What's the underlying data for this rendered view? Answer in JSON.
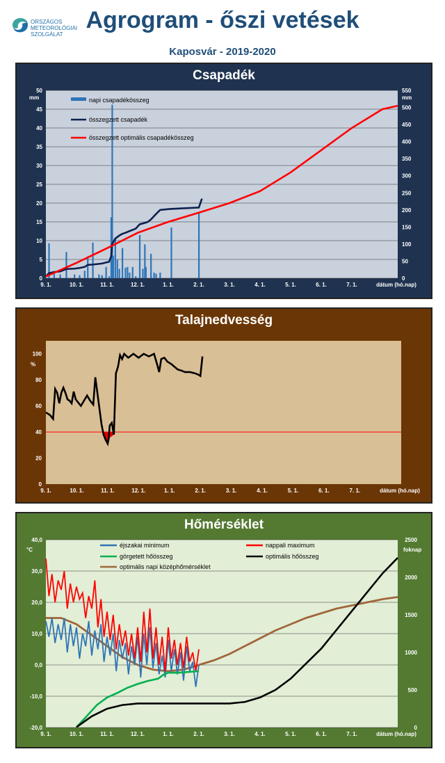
{
  "header": {
    "org_line1": "ORSZÁGOS",
    "org_line2": "METEOROLÓGIAI",
    "org_line3": "SZOLGÁLAT",
    "title": "Agrogram - őszi vetések",
    "subtitle": "Kaposvár  - 2019-2020"
  },
  "colors": {
    "napi": "#2e75b6",
    "osszegzett": "#0d1f4f",
    "optimalis": "#ff0000",
    "moisture": "#000000",
    "moisture_fill": "#e00000",
    "threshold": "#ff0000",
    "ejszakai": "#2e75b6",
    "nappali": "#ff0000",
    "gorgetett": "#00b050",
    "opt_hoosszeg": "#000000",
    "opt_kozep": "#a0663a"
  },
  "x_ticks": [
    "9. 1.",
    "10. 1.",
    "11. 1.",
    "12. 1.",
    "1. 1.",
    "2. 1.",
    "3. 1.",
    "4. 1.",
    "5. 1.",
    "6. 1.",
    "7. 1.",
    "dátum (hó.nap)"
  ],
  "chart_data": [
    {
      "type": "bar",
      "title": "Csapadék",
      "ylabel": "mm",
      "y2label": "mm",
      "ylim": [
        0,
        50
      ],
      "y2lim": [
        0,
        550
      ],
      "yticks": [
        0,
        5,
        10,
        15,
        20,
        25,
        30,
        35,
        40,
        45,
        50
      ],
      "y2ticks": [
        0,
        50,
        100,
        150,
        200,
        250,
        300,
        350,
        400,
        450,
        500,
        550
      ],
      "xlabel": "dátum (hó.nap)",
      "legend": [
        "napi csapadékösszeg",
        "összegzett csapadék",
        "összegzett optimális csapadékösszeg"
      ],
      "legend_position": "top-left",
      "grid": true,
      "series": [
        {
          "name": "napi csapadékösszeg",
          "axis": "left",
          "kind": "bar",
          "x": [
            3,
            8,
            14,
            20,
            28,
            33,
            38,
            41,
            46,
            52,
            55,
            59,
            62,
            64,
            65,
            66,
            68,
            70,
            72,
            75,
            78,
            80,
            82,
            85,
            88,
            92,
            95,
            97,
            98,
            103,
            106,
            108,
            112,
            123,
            150
          ],
          "values": [
            9.3,
            1.5,
            1,
            7,
            1,
            0.8,
            2,
            5.8,
            9.5,
            1,
            0.8,
            3,
            0.5,
            16.2,
            46.2,
            6,
            10.5,
            5,
            2.5,
            8,
            2.8,
            3,
            1.5,
            3,
            0.5,
            11.5,
            2.5,
            9,
            3,
            6.5,
            1.5,
            1.2,
            1.5,
            13.5,
            17.2
          ]
        },
        {
          "name": "összegzett csapadék",
          "axis": "right",
          "kind": "line",
          "x": [
            0,
            3,
            8,
            14,
            20,
            28,
            33,
            38,
            41,
            46,
            52,
            55,
            59,
            62,
            64,
            65,
            68,
            72,
            75,
            78,
            82,
            88,
            92,
            97,
            100,
            103,
            108,
            112,
            119,
            123,
            150,
            153
          ],
          "values": [
            5,
            15,
            18,
            20,
            27,
            28,
            30,
            33,
            39,
            40,
            42,
            43,
            46,
            48,
            64,
            100,
            116,
            125,
            130,
            133,
            138,
            145,
            158,
            162,
            165,
            172,
            188,
            200,
            202,
            203,
            207,
            233
          ]
        },
        {
          "name": "összegzett optimális csapadékösszeg",
          "axis": "right",
          "kind": "line",
          "x": [
            0,
            30,
            60,
            90,
            120,
            150,
            180,
            210,
            240,
            270,
            300,
            330,
            345
          ],
          "values": [
            5,
            45,
            88,
            133,
            165,
            192,
            220,
            255,
            310,
            375,
            440,
            495,
            505
          ]
        }
      ]
    },
    {
      "type": "line",
      "title": "Talajnedvesség",
      "ylabel": "%",
      "ylim": [
        0,
        110
      ],
      "yticks": [
        0,
        20,
        40,
        60,
        80,
        100
      ],
      "xlabel": "dátum (hó.nap)",
      "grid": false,
      "threshold": 40,
      "series": [
        {
          "name": "talajnedvesség",
          "x": [
            0,
            4,
            7,
            9,
            11,
            13,
            15,
            17,
            19,
            21,
            23,
            25,
            27,
            29,
            31,
            34,
            37,
            40,
            43,
            46,
            48,
            50,
            52,
            54,
            56,
            58,
            60,
            61,
            62,
            64,
            66,
            68,
            70,
            72,
            74,
            76,
            80,
            85,
            90,
            95,
            100,
            105,
            108,
            110,
            112,
            115,
            118,
            122,
            125,
            128,
            132,
            135,
            140,
            145,
            148,
            150,
            152
          ],
          "values": [
            55,
            53,
            50,
            73,
            70,
            62,
            70,
            74,
            70,
            65,
            64,
            62,
            71,
            65,
            63,
            60,
            64,
            68,
            64,
            61,
            82,
            70,
            58,
            46,
            38,
            34,
            31,
            35,
            45,
            47,
            38,
            85,
            90,
            99,
            96,
            100,
            97,
            100,
            97,
            100,
            98,
            100,
            92,
            86,
            96,
            97,
            94,
            92,
            90,
            88,
            87,
            86,
            86,
            85,
            84,
            83,
            98
          ]
        }
      ]
    },
    {
      "type": "line",
      "title": "Hőmérséklet",
      "ylabel": "°C",
      "y2label": "foknap",
      "ylim": [
        -20,
        40
      ],
      "y2lim": [
        0,
        2500
      ],
      "yticks": [
        -20,
        -10,
        0,
        10,
        20,
        30,
        40
      ],
      "ytick_labels": [
        "-20,0",
        "-10,0",
        "0,0",
        "10,0",
        "20,0",
        "30,0",
        "40,0"
      ],
      "y2ticks": [
        0,
        500,
        1000,
        1500,
        2000,
        2500
      ],
      "xlabel": "dátum (hó.nap)",
      "legend": [
        "éjszakai minimum",
        "nappali maximum",
        "görgetett hőösszeg",
        "optimális hőösszeg",
        "optimális napi középhőmérséklet"
      ],
      "legend_position": "top",
      "grid": true,
      "series": [
        {
          "name": "éjszakai minimum",
          "axis": "left",
          "x": [
            0,
            3,
            6,
            9,
            12,
            15,
            18,
            21,
            24,
            27,
            30,
            33,
            36,
            39,
            42,
            45,
            48,
            51,
            54,
            57,
            60,
            63,
            66,
            69,
            72,
            75,
            78,
            81,
            84,
            87,
            90,
            93,
            96,
            99,
            102,
            105,
            108,
            111,
            114,
            117,
            120,
            123,
            126,
            129,
            132,
            135,
            138,
            141,
            144,
            147,
            150
          ],
          "values": [
            14,
            9,
            15,
            7,
            13,
            8,
            15,
            4,
            13,
            6,
            12,
            2,
            10,
            6,
            14,
            3,
            11,
            5,
            13,
            1,
            9,
            3,
            10,
            -2,
            8,
            2,
            7,
            -3,
            6,
            0,
            9,
            -4,
            10,
            0,
            12,
            -1,
            7,
            -3,
            3,
            -4,
            8,
            -2,
            5,
            -3,
            4,
            -5,
            6,
            -2,
            1,
            -7,
            0
          ]
        },
        {
          "name": "nappali maximum",
          "axis": "left",
          "x": [
            0,
            3,
            6,
            9,
            12,
            15,
            18,
            21,
            24,
            27,
            30,
            33,
            36,
            39,
            42,
            45,
            48,
            51,
            54,
            57,
            60,
            63,
            66,
            69,
            72,
            75,
            78,
            81,
            84,
            87,
            90,
            93,
            96,
            99,
            102,
            105,
            108,
            111,
            114,
            117,
            120,
            123,
            126,
            129,
            132,
            135,
            138,
            141,
            144,
            147,
            150
          ],
          "values": [
            34,
            22,
            29,
            20,
            27,
            24,
            30,
            18,
            26,
            20,
            25,
            21,
            23,
            15,
            22,
            18,
            27,
            12,
            21,
            9,
            17,
            8,
            16,
            5,
            13,
            6,
            11,
            3,
            10,
            2,
            12,
            1,
            17,
            4,
            18,
            2,
            12,
            0,
            9,
            -2,
            12,
            2,
            8,
            0,
            7,
            -1,
            9,
            1,
            4,
            -2,
            5
          ]
        },
        {
          "name": "görgetett hőösszeg",
          "axis": "right",
          "x": [
            30,
            40,
            50,
            60,
            70,
            80,
            90,
            100,
            110,
            115,
            120,
            130,
            140,
            150
          ],
          "values": [
            5,
            150,
            300,
            400,
            460,
            530,
            580,
            620,
            650,
            700,
            730,
            730,
            740,
            750
          ]
        },
        {
          "name": "optimális hőösszeg",
          "axis": "right",
          "x": [
            30,
            45,
            60,
            75,
            90,
            120,
            150,
            180,
            195,
            210,
            225,
            240,
            255,
            270,
            285,
            300,
            315,
            330,
            345
          ],
          "values": [
            5,
            150,
            250,
            300,
            320,
            320,
            320,
            320,
            340,
            400,
            500,
            650,
            850,
            1050,
            1300,
            1550,
            1800,
            2050,
            2260
          ]
        },
        {
          "name": "optimális napi középhőmérséklet",
          "axis": "left",
          "x": [
            0,
            15,
            30,
            45,
            60,
            75,
            90,
            105,
            120,
            135,
            150,
            165,
            180,
            195,
            210,
            225,
            240,
            255,
            270,
            285,
            300,
            315,
            330,
            345
          ],
          "values": [
            15,
            15,
            13,
            9.5,
            6,
            2.5,
            0,
            -1.5,
            -2,
            -1.5,
            0,
            1.5,
            3.5,
            6,
            8.5,
            11,
            13,
            15,
            16.5,
            18,
            19,
            20,
            21,
            21.7
          ]
        }
      ]
    }
  ]
}
